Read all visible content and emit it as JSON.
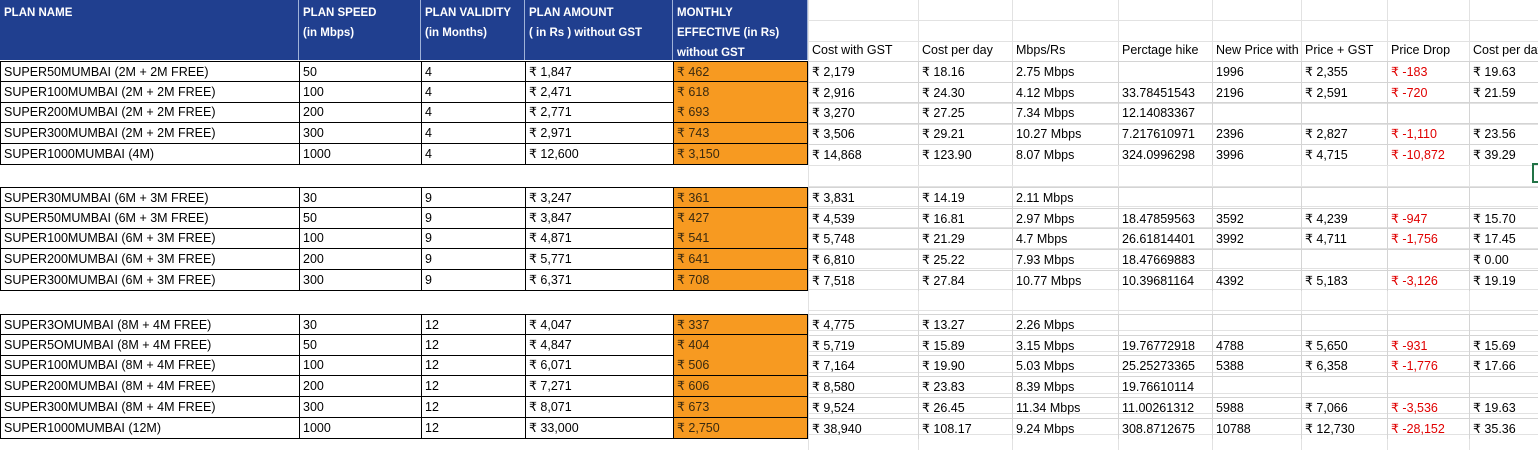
{
  "headers": {
    "plan_name": [
      "PLAN NAME"
    ],
    "plan_speed": [
      "PLAN SPEED",
      "(in Mbps)"
    ],
    "plan_validity": [
      "PLAN VALIDITY",
      "(in Months)"
    ],
    "plan_amount": [
      "PLAN AMOUNT",
      "( in Rs ) without GST"
    ],
    "monthly_effective": [
      "MONTHLY",
      "EFFECTIVE (in Rs)",
      "without GST"
    ],
    "cost_with_gst": "Cost with GST",
    "cost_per_day": "Cost per day",
    "mbps_rs": "Mbps/Rs",
    "percentage_hike": "Perctage hike",
    "new_price": "New Price with GST",
    "price_plus_gst": "Price + GST",
    "price_drop": "Price Drop",
    "cost_per_day_new": "Cost per day"
  },
  "groups": [
    {
      "rows": [
        {
          "name": "SUPER50MUMBAI (2M + 2M FREE)",
          "speed": "50",
          "validity": "4",
          "amount": "₹ 1,847",
          "monthly": "₹ 462",
          "gst": "₹ 2,179",
          "perday": "₹ 18.16",
          "mbps": "2.75 Mbps",
          "hike": "",
          "newprice": "1996",
          "pricegst": "₹ 2,355",
          "drop": "₹ -183",
          "perday2": "₹ 19.63"
        },
        {
          "name": "SUPER100MUMBAI (2M + 2M FREE)",
          "speed": "100",
          "validity": "4",
          "amount": "₹ 2,471",
          "monthly": "₹ 618",
          "gst": "₹ 2,916",
          "perday": "₹ 24.30",
          "mbps": "4.12 Mbps",
          "hike": "33.78451543",
          "newprice": "2196",
          "pricegst": "₹ 2,591",
          "drop": "₹ -720",
          "perday2": "₹ 21.59"
        },
        {
          "name": "SUPER200MUMBAI (2M + 2M FREE)",
          "speed": "200",
          "validity": "4",
          "amount": "₹ 2,771",
          "monthly": "₹ 693",
          "gst": "₹ 3,270",
          "perday": "₹ 27.25",
          "mbps": "7.34 Mbps",
          "hike": "12.14083367",
          "newprice": "",
          "pricegst": "",
          "drop": "",
          "perday2": ""
        },
        {
          "name": "SUPER300MUMBAI (2M + 2M FREE)",
          "speed": "300",
          "validity": "4",
          "amount": "₹ 2,971",
          "monthly": "₹ 743",
          "gst": "₹ 3,506",
          "perday": "₹ 29.21",
          "mbps": "10.27 Mbps",
          "hike": "7.217610971",
          "newprice": "2396",
          "pricegst": "₹ 2,827",
          "drop": "₹ -1,110",
          "perday2": "₹ 23.56"
        },
        {
          "name": "SUPER1000MUMBAI (4M)",
          "speed": "1000",
          "validity": "4",
          "amount": "₹ 12,600",
          "monthly": "₹ 3,150",
          "gst": "₹ 14,868",
          "perday": "₹ 123.90",
          "mbps": "8.07 Mbps",
          "hike": "324.0996298",
          "newprice": "3996",
          "pricegst": "₹ 4,715",
          "drop": "₹ -10,872",
          "perday2": "₹ 39.29"
        }
      ]
    },
    {
      "rows": [
        {
          "name": "SUPER30MUMBAI (6M + 3M FREE)",
          "speed": "30",
          "validity": "9",
          "amount": "₹ 3,247",
          "monthly": "₹ 361",
          "gst": "₹ 3,831",
          "perday": "₹ 14.19",
          "mbps": "2.11 Mbps",
          "hike": "",
          "newprice": "",
          "pricegst": "",
          "drop": "",
          "perday2": ""
        },
        {
          "name": "SUPER50MUMBAI (6M + 3M FREE)",
          "speed": "50",
          "validity": "9",
          "amount": "₹ 3,847",
          "monthly": "₹ 427",
          "gst": "₹ 4,539",
          "perday": "₹ 16.81",
          "mbps": "2.97 Mbps",
          "hike": "18.47859563",
          "newprice": "3592",
          "pricegst": "₹ 4,239",
          "drop": "₹ -947",
          "perday2": "₹ 15.70"
        },
        {
          "name": "SUPER100MUMBAI (6M + 3M FREE)",
          "speed": "100",
          "validity": "9",
          "amount": "₹ 4,871",
          "monthly": "₹ 541",
          "gst": "₹ 5,748",
          "perday": "₹ 21.29",
          "mbps": "4.7 Mbps",
          "hike": "26.61814401",
          "newprice": "3992",
          "pricegst": "₹ 4,711",
          "drop": "₹ -1,756",
          "perday2": "₹ 17.45"
        },
        {
          "name": "SUPER200MUMBAI (6M + 3M FREE)",
          "speed": "200",
          "validity": "9",
          "amount": "₹ 5,771",
          "monthly": "₹ 641",
          "gst": "₹ 6,810",
          "perday": "₹ 25.22",
          "mbps": "7.93 Mbps",
          "hike": "18.47669883",
          "newprice": "",
          "pricegst": "",
          "drop": "",
          "perday2": "₹ 0.00"
        },
        {
          "name": "SUPER300MUMBAI (6M + 3M FREE)",
          "speed": "300",
          "validity": "9",
          "amount": "₹ 6,371",
          "monthly": "₹ 708",
          "gst": "₹ 7,518",
          "perday": "₹ 27.84",
          "mbps": "10.77 Mbps",
          "hike": "10.39681164",
          "newprice": "4392",
          "pricegst": "₹ 5,183",
          "drop": "₹ -3,126",
          "perday2": "₹ 19.19"
        }
      ]
    },
    {
      "rows": [
        {
          "name": "SUPER3OMUMBAI (8M + 4M FREE)",
          "speed": "30",
          "validity": "12",
          "amount": "₹ 4,047",
          "monthly": "₹ 337",
          "gst": "₹ 4,775",
          "perday": "₹ 13.27",
          "mbps": "2.26 Mbps",
          "hike": "",
          "newprice": "",
          "pricegst": "",
          "drop": "",
          "perday2": ""
        },
        {
          "name": "SUPER5OMUMBAI (8M + 4M FREE)",
          "speed": "50",
          "validity": "12",
          "amount": "₹ 4,847",
          "monthly": "₹ 404",
          "gst": "₹ 5,719",
          "perday": "₹ 15.89",
          "mbps": "3.15 Mbps",
          "hike": "19.76772918",
          "newprice": "4788",
          "pricegst": "₹ 5,650",
          "drop": "₹ -931",
          "perday2": "₹ 15.69"
        },
        {
          "name": "SUPER100MUMBAI (8M + 4M FREE)",
          "speed": "100",
          "validity": "12",
          "amount": "₹ 6,071",
          "monthly": "₹ 506",
          "gst": "₹ 7,164",
          "perday": "₹ 19.90",
          "mbps": "5.03 Mbps",
          "hike": "25.25273365",
          "newprice": "5388",
          "pricegst": "₹ 6,358",
          "drop": "₹ -1,776",
          "perday2": "₹ 17.66"
        },
        {
          "name": "SUPER200MUMBAI (8M + 4M FREE)",
          "speed": "200",
          "validity": "12",
          "amount": "₹ 7,271",
          "monthly": "₹ 606",
          "gst": "₹ 8,580",
          "perday": "₹ 23.83",
          "mbps": "8.39 Mbps",
          "hike": "19.76610114",
          "newprice": "",
          "pricegst": "",
          "drop": "",
          "perday2": ""
        },
        {
          "name": "SUPER300MUMBAI (8M + 4M FREE)",
          "speed": "300",
          "validity": "12",
          "amount": "₹ 8,071",
          "monthly": "₹ 673",
          "gst": "₹ 9,524",
          "perday": "₹ 26.45",
          "mbps": "11.34 Mbps",
          "hike": "11.00261312",
          "newprice": "5988",
          "pricegst": "₹ 7,066",
          "drop": "₹ -3,536",
          "perday2": "₹ 19.63"
        },
        {
          "name": "SUPER1000MUMBAI (12M)",
          "speed": "1000",
          "validity": "12",
          "amount": "₹ 33,000",
          "monthly": "₹ 2,750",
          "gst": "₹ 38,940",
          "perday": "₹ 108.17",
          "mbps": "9.24 Mbps",
          "hike": "308.8712675",
          "newprice": "10788",
          "pricegst": "₹ 12,730",
          "drop": "₹ -28,152",
          "perday2": "₹ 35.36"
        }
      ]
    }
  ],
  "colors": {
    "header_bg": "#203f8f",
    "monthly_fill": "#f79a21",
    "price_drop_text": "#e00000",
    "selection_border": "#217346"
  }
}
